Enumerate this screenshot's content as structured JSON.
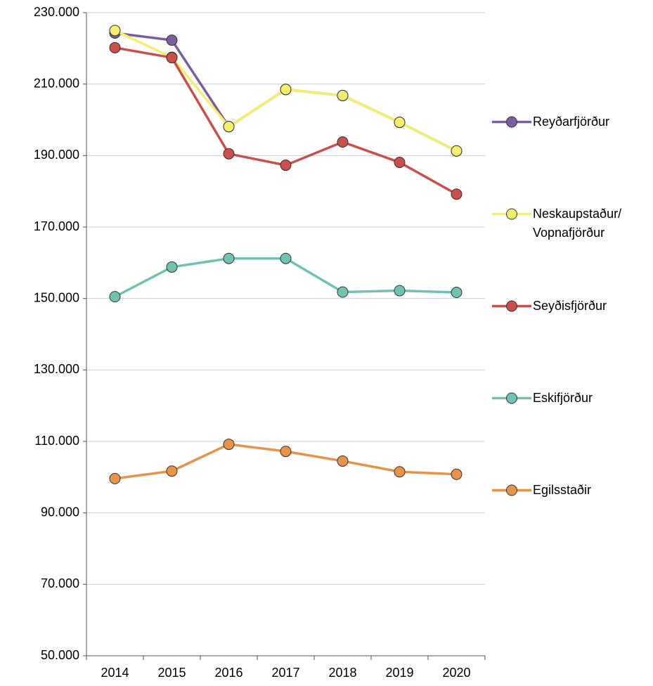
{
  "chart_data": {
    "type": "line",
    "categories": [
      "2014",
      "2015",
      "2016",
      "2017",
      "2018",
      "2019",
      "2020"
    ],
    "series": [
      {
        "name": "Reyðarfjörður",
        "color": "#7b5e9c",
        "values": [
          224300,
          222300,
          198100,
          208500,
          206800,
          199300,
          191300
        ]
      },
      {
        "name": "Neskaupstaður/ Vopnafjörður",
        "color": "#f4ef6c",
        "values": [
          225000,
          217500,
          198100,
          208500,
          206800,
          199300,
          191300
        ]
      },
      {
        "name": "Seyðisfjörður",
        "color": "#c9504d",
        "values": [
          220200,
          217400,
          190500,
          187300,
          193800,
          188100,
          179200
        ]
      },
      {
        "name": "Eskifjörður",
        "color": "#70c3b1",
        "values": [
          150500,
          158800,
          161200,
          161200,
          151800,
          152200,
          151700
        ]
      },
      {
        "name": "Egilsstaðir",
        "color": "#e8924a",
        "values": [
          99600,
          101700,
          109200,
          107200,
          104500,
          101500,
          100800
        ]
      }
    ],
    "ylim": [
      50000,
      230000
    ],
    "yticks": [
      {
        "value": 50000,
        "label": "50.000"
      },
      {
        "value": 70000,
        "label": "70.000"
      },
      {
        "value": 90000,
        "label": "90.000"
      },
      {
        "value": 110000,
        "label": "110.000"
      },
      {
        "value": 130000,
        "label": "130.000"
      },
      {
        "value": 150000,
        "label": "150.000"
      },
      {
        "value": 170000,
        "label": "170.000"
      },
      {
        "value": 190000,
        "label": "190.000"
      },
      {
        "value": 210000,
        "label": "210.000"
      },
      {
        "value": 230000,
        "label": "230.000"
      }
    ],
    "grid": true,
    "legend": "right"
  }
}
